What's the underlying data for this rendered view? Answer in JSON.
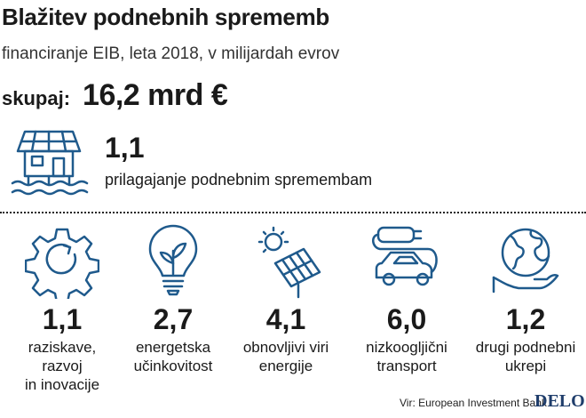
{
  "header": {
    "title": "Blažitev podnebnih sprememb",
    "subtitle": "financiranje EIB, leta 2018, v milijardah evrov"
  },
  "total": {
    "label": "skupaj:",
    "value": "16,2 mrd €"
  },
  "icons": {
    "adaptation": "house-on-water-icon",
    "categories": [
      "gear-cycle-icon",
      "light-bulb-leaf-icon",
      "solar-panel-sun-icon",
      "electric-car-icon",
      "globe-hand-icon"
    ]
  },
  "colors": {
    "accent": "#1f5a8c",
    "text": "#1a1a1a",
    "brand": "#1f3d6b"
  },
  "chart_data": {
    "type": "table",
    "title": "Blažitev podnebnih sprememb",
    "subtitle": "financiranje EIB, leta 2018, v milijardah evrov",
    "unit": "milijarde evrov",
    "total": 16.2,
    "adaptation": {
      "value": "1,1",
      "label": "prilagajanje podnebnim spremembam"
    },
    "categories": [
      {
        "value": "1,1",
        "label_lines": [
          "raziskave,",
          "razvoj",
          "in inovacije"
        ]
      },
      {
        "value": "2,7",
        "label_lines": [
          "energetska",
          "učinkovitost"
        ]
      },
      {
        "value": "4,1",
        "label_lines": [
          "obnovljivi viri",
          "energije"
        ]
      },
      {
        "value": "6,0",
        "label_lines": [
          "nizkoogljični",
          "transport"
        ]
      },
      {
        "value": "1,2",
        "label_lines": [
          "drugi podnebni",
          "ukrepi"
        ]
      }
    ]
  },
  "footer": {
    "source": "Vir: European Investment Bank",
    "brand": "DELO"
  }
}
